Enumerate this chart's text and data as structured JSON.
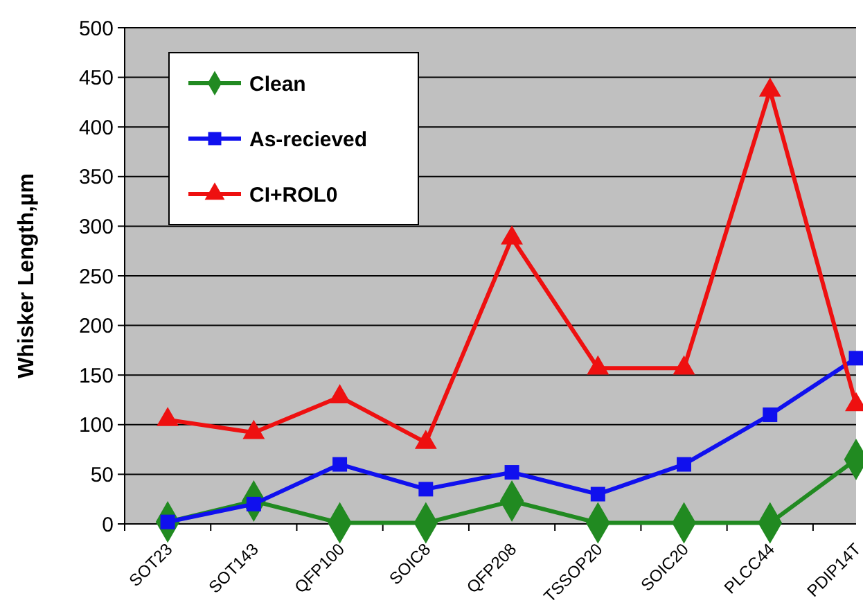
{
  "chart_data": {
    "type": "line",
    "ylabel": "Whisker Length,µm",
    "categories": [
      "SOT23",
      "SOT143",
      "QFP100",
      "SOIC8",
      "QFP208",
      "TSSOP20",
      "SOIC20",
      "PLCC44",
      "PDIP14T"
    ],
    "series": [
      {
        "name": "Clean",
        "color": "#218a21",
        "marker": "diamond",
        "values": [
          2,
          23,
          1,
          1,
          23,
          1,
          1,
          1,
          65
        ]
      },
      {
        "name": "As-recieved",
        "color": "#1010ee",
        "marker": "square",
        "values": [
          2,
          20,
          60,
          35,
          52,
          30,
          60,
          110,
          167
        ]
      },
      {
        "name": "CI+ROL0",
        "color": "#ee1010",
        "marker": "triangle",
        "values": [
          105,
          92,
          128,
          82,
          288,
          157,
          157,
          437,
          120
        ]
      }
    ],
    "ylim": [
      0,
      500
    ],
    "yticks": [
      0,
      50,
      100,
      150,
      200,
      250,
      300,
      350,
      400,
      450,
      500
    ],
    "grid": "y",
    "legend": "top left"
  }
}
